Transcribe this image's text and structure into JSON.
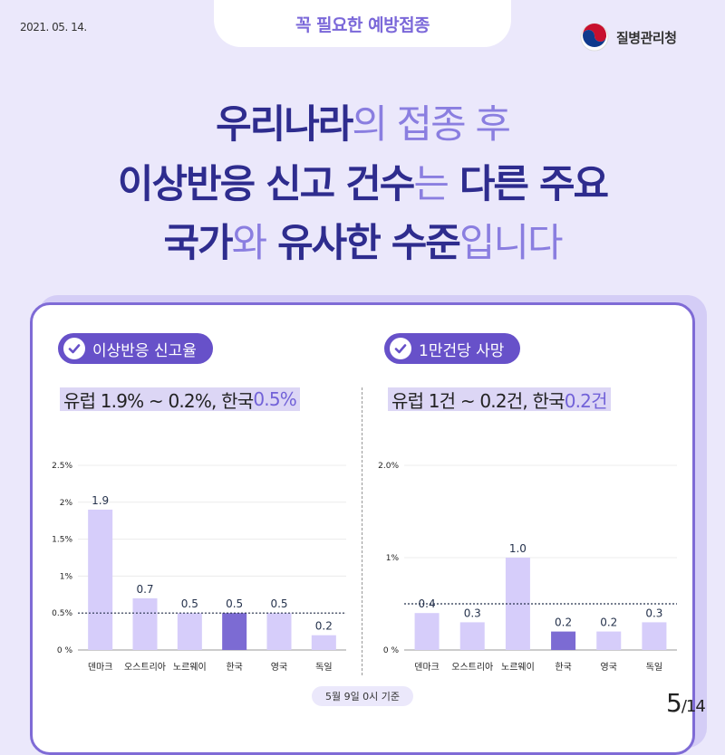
{
  "header": {
    "date": "2021. 05. 14.",
    "badge": "꼭 필요한 예방접종",
    "agency": "질병관리청"
  },
  "headline": {
    "line1": [
      {
        "t": "우리나라",
        "s": "b"
      },
      {
        "t": "의 접종 후",
        "s": "l"
      }
    ],
    "line2": [
      {
        "t": "이상반응 신고 건수",
        "s": "b"
      },
      {
        "t": "는",
        "s": "l"
      },
      {
        "t": " 다른 주요",
        "s": "b"
      }
    ],
    "line3": [
      {
        "t": "국가",
        "s": "b"
      },
      {
        "t": "와",
        "s": "l"
      },
      {
        "t": " 유사한 수준",
        "s": "b"
      },
      {
        "t": "입니다",
        "s": "l"
      }
    ]
  },
  "panels": {
    "left": {
      "title": "이상반응 신고율",
      "summary_text": "유럽 1.9% ~ 0.2%, 한국 ",
      "summary_highlight": "0.5%"
    },
    "right": {
      "title": "1만건당 사망",
      "summary_text": "유럽 1건 ~ 0.2건, 한국 ",
      "summary_highlight": "0.2건"
    }
  },
  "footnote": "5월 9일 0시 기준",
  "page": {
    "current": "5",
    "total": "14"
  },
  "colors": {
    "bar": "#d6cdfa",
    "highlight_bar": "#7c6bd3",
    "label": "#26334d",
    "reference_line": "#26334d"
  },
  "chart_data": [
    {
      "type": "bar",
      "categories": [
        "덴마크",
        "오스트리아",
        "노르웨이",
        "한국",
        "영국",
        "독일"
      ],
      "values": [
        1.9,
        0.7,
        0.5,
        0.5,
        0.5,
        0.2
      ],
      "value_labels": [
        "1.9",
        "0.7",
        "0.5",
        "0.5",
        "0.5",
        "0.2"
      ],
      "highlight": "한국",
      "ylim": [
        0,
        2.5
      ],
      "yticks": [
        0,
        0.5,
        1,
        1.5,
        2,
        2.5
      ],
      "ytick_labels": [
        "0 %",
        "0.5%",
        "1%",
        "1.5%",
        "2%",
        "2.5%"
      ],
      "reference_line": 0.5,
      "grid": true
    },
    {
      "type": "bar",
      "categories": [
        "덴마크",
        "오스트리아",
        "노르웨이",
        "한국",
        "영국",
        "독일"
      ],
      "values": [
        0.4,
        0.3,
        1.0,
        0.2,
        0.2,
        0.3
      ],
      "value_labels": [
        "0.4",
        "0.3",
        "1.0",
        "0.2",
        "0.2",
        "0.3"
      ],
      "highlight": "한국",
      "ylim": [
        0,
        2.0
      ],
      "yticks": [
        0,
        1,
        2
      ],
      "ytick_labels": [
        "0 %",
        "1%",
        "2.0%"
      ],
      "reference_line": 0.5,
      "grid": true
    }
  ]
}
